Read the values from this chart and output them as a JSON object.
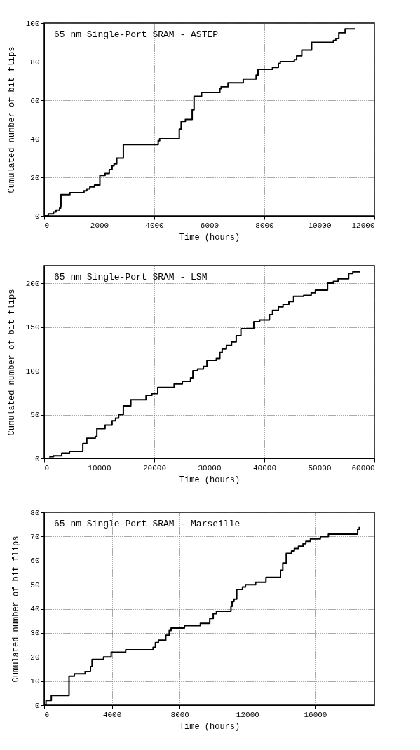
{
  "chart_data": [
    {
      "type": "step",
      "annotations": [
        "65 nm Single-Port SRAM - ASTEP"
      ],
      "xlabel": "Time (hours)",
      "ylabel": "Cumulated number of bit flips",
      "color": "#000000",
      "grid": true,
      "xlim": [
        0,
        12000
      ],
      "ylim": [
        0,
        100
      ],
      "xticks": [
        0,
        2000,
        4000,
        6000,
        8000,
        10000,
        12000
      ],
      "yticks": [
        0,
        20,
        40,
        60,
        80,
        100
      ],
      "x": [
        0,
        150,
        340,
        430,
        560,
        600,
        610,
        936,
        1447,
        1549,
        1660,
        1830,
        2025,
        2213,
        2366,
        2468,
        2540,
        2638,
        2877,
        4144,
        4196,
        4910,
        4978,
        5131,
        5378,
        5446,
        5719,
        6383,
        6430,
        6680,
        7234,
        7702,
        7770,
        8297,
        8510,
        8578,
        9088,
        9174,
        9361,
        9718,
        10510,
        10595,
        10706,
        10936,
        11293
      ],
      "values": [
        0,
        1,
        2,
        3,
        4,
        5,
        11,
        12,
        13,
        14,
        15,
        16,
        21,
        22,
        24,
        26,
        27,
        30,
        37,
        39,
        40,
        45,
        49,
        50,
        55,
        62,
        64,
        66,
        67,
        69,
        71,
        73,
        76,
        77,
        79,
        80,
        81,
        83,
        86,
        90,
        91,
        92,
        95,
        97,
        97
      ]
    },
    {
      "type": "step",
      "annotations": [
        "65 nm Single-Port SRAM - LSM"
      ],
      "xlabel": "Time (hours)",
      "ylabel": "Cumulated number of bit flips",
      "color": "#000000",
      "grid": true,
      "xlim": [
        0,
        60000
      ],
      "ylim": [
        0,
        220
      ],
      "xticks": [
        0,
        10000,
        20000,
        30000,
        40000,
        50000,
        60000
      ],
      "yticks": [
        0,
        50,
        100,
        150,
        200
      ],
      "x": [
        0,
        1064,
        1700,
        3191,
        4595,
        7021,
        7744,
        9276,
        9574,
        11063,
        12340,
        12978,
        13532,
        14382,
        15744,
        18510,
        19574,
        20637,
        23616,
        25105,
        26594,
        27020,
        27871,
        28935,
        29573,
        31275,
        31913,
        32339,
        33105,
        34041,
        34892,
        35743,
        38084,
        39148,
        40933,
        41487,
        42551,
        43402,
        44466,
        45317,
        47146,
        48508,
        49274,
        51487,
        52551,
        53402,
        55317,
        56081,
        57443
      ],
      "values": [
        0,
        2,
        3,
        6,
        8,
        17,
        23,
        25,
        34,
        38,
        43,
        46,
        50,
        60,
        67,
        72,
        74,
        81,
        85,
        88,
        92,
        100,
        102,
        105,
        112,
        114,
        121,
        125,
        129,
        133,
        140,
        148,
        156,
        158,
        164,
        169,
        173,
        176,
        179,
        185,
        186,
        189,
        192,
        200,
        202,
        205,
        211,
        213,
        213
      ]
    },
    {
      "type": "step",
      "annotations": [
        "65 nm Single-Port SRAM - Marseille"
      ],
      "xlabel": "Time (hours)",
      "ylabel": "Cumulated number of bit flips",
      "color": "#000000",
      "grid": true,
      "xlim": [
        0,
        19500
      ],
      "ylim": [
        0,
        80
      ],
      "xticks": [
        0,
        4000,
        8000,
        12000,
        16000
      ],
      "yticks": [
        0,
        10,
        20,
        30,
        40,
        50,
        60,
        70,
        80
      ],
      "x": [
        0,
        109,
        422,
        1469,
        1782,
        2421,
        2734,
        2829,
        3509,
        3958,
        4814,
        6433,
        6569,
        6746,
        7181,
        7385,
        7494,
        8282,
        9221,
        9778,
        9982,
        10173,
        11030,
        11098,
        11206,
        11370,
        11710,
        11886,
        12485,
        13097,
        13954,
        14090,
        14294,
        14606,
        14770,
        15014,
        15286,
        15450,
        15722,
        16306,
        16782,
        18510,
        18605
      ],
      "values": [
        0,
        2,
        4,
        12,
        13,
        14,
        16,
        19,
        20,
        22,
        23,
        24,
        26,
        27,
        29,
        31,
        32,
        33,
        34,
        36,
        38,
        39,
        41,
        43,
        44,
        48,
        49,
        50,
        51,
        53,
        56,
        59,
        63,
        64,
        65,
        66,
        67,
        68,
        69,
        70,
        71,
        73,
        74
      ]
    }
  ]
}
